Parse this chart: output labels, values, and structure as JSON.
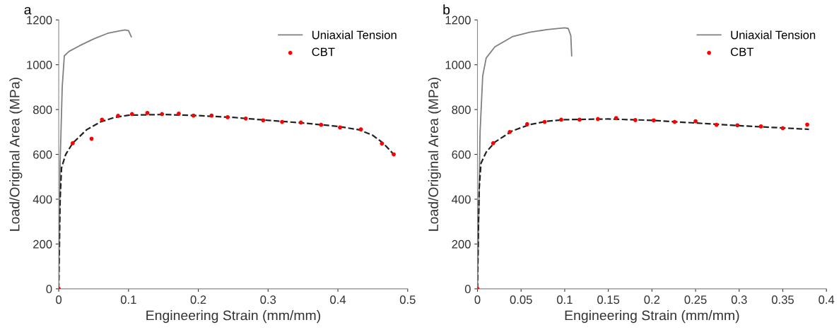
{
  "chart_data": [
    {
      "type": "line",
      "title": "a",
      "xlabel": "Engineering Strain (mm/mm)",
      "ylabel": "Load/Original Area (MPa)",
      "xlim": [
        0,
        0.5
      ],
      "ylim": [
        0,
        1200
      ],
      "xticks": [
        0,
        0.1,
        0.2,
        0.3,
        0.4,
        0.5
      ],
      "yticks": [
        0,
        200,
        400,
        600,
        800,
        1000,
        1200
      ],
      "grid": false,
      "legend": "top right",
      "series": [
        {
          "name": "Uniaxial Tension",
          "color": "#808080",
          "line_style": "solid",
          "x": [
            0,
            0.002,
            0.005,
            0.008,
            0.015,
            0.03,
            0.05,
            0.07,
            0.085,
            0.095,
            0.1,
            0.104
          ],
          "values": [
            0,
            560,
            900,
            1040,
            1060,
            1085,
            1115,
            1140,
            1150,
            1155,
            1152,
            1125
          ]
        },
        {
          "name": "CBT",
          "type": "scatter",
          "color": "#ff0000",
          "marker": "circle",
          "x": [
            0,
            0.02,
            0.047,
            0.062,
            0.085,
            0.105,
            0.127,
            0.148,
            0.172,
            0.193,
            0.219,
            0.242,
            0.268,
            0.293,
            0.32,
            0.347,
            0.376,
            0.403,
            0.433,
            0.463,
            0.48
          ],
          "values": [
            0,
            650,
            670,
            755,
            772,
            780,
            785,
            780,
            782,
            773,
            773,
            766,
            760,
            752,
            745,
            742,
            732,
            720,
            712,
            648,
            600
          ]
        },
        {
          "color": "#222222",
          "line_style": "dashed",
          "x": [
            0,
            0.001,
            0.002,
            0.004,
            0.01,
            0.02,
            0.04,
            0.06,
            0.08,
            0.1,
            0.15,
            0.2,
            0.25,
            0.3,
            0.35,
            0.4,
            0.43,
            0.45,
            0.465,
            0.48
          ],
          "values": [
            0,
            200,
            400,
            540,
            600,
            650,
            710,
            745,
            765,
            775,
            778,
            773,
            765,
            752,
            740,
            725,
            710,
            685,
            650,
            600
          ]
        }
      ]
    },
    {
      "type": "line",
      "title": "b",
      "xlabel": "Engineering Strain (mm/mm)",
      "ylabel": "Load/Original Area (MPa)",
      "xlim": [
        0,
        0.4
      ],
      "ylim": [
        0,
        1200
      ],
      "xticks": [
        0,
        0.05,
        0.1,
        0.15,
        0.2,
        0.25,
        0.3,
        0.35,
        0.4
      ],
      "yticks": [
        0,
        200,
        400,
        600,
        800,
        1000,
        1200
      ],
      "grid": false,
      "legend": "top right",
      "series": [
        {
          "name": "Uniaxial Tension",
          "color": "#808080",
          "line_style": "solid",
          "x": [
            0,
            0.003,
            0.006,
            0.01,
            0.02,
            0.04,
            0.06,
            0.08,
            0.1,
            0.104,
            0.107,
            0.108
          ],
          "values": [
            0,
            700,
            950,
            1030,
            1080,
            1125,
            1145,
            1157,
            1165,
            1162,
            1130,
            1040
          ]
        },
        {
          "name": "CBT",
          "type": "scatter",
          "color": "#ff0000",
          "marker": "circle",
          "x": [
            0,
            0.018,
            0.037,
            0.057,
            0.077,
            0.096,
            0.117,
            0.138,
            0.159,
            0.181,
            0.202,
            0.226,
            0.25,
            0.274,
            0.298,
            0.325,
            0.35,
            0.378
          ],
          "values": [
            0,
            650,
            700,
            735,
            745,
            755,
            755,
            758,
            762,
            753,
            752,
            745,
            748,
            732,
            730,
            725,
            717,
            733
          ]
        },
        {
          "color": "#222222",
          "line_style": "dashed",
          "x": [
            0,
            0.001,
            0.002,
            0.004,
            0.01,
            0.02,
            0.04,
            0.06,
            0.08,
            0.1,
            0.15,
            0.2,
            0.25,
            0.3,
            0.35,
            0.38
          ],
          "values": [
            0,
            250,
            450,
            560,
            610,
            655,
            705,
            733,
            748,
            755,
            758,
            752,
            740,
            728,
            718,
            712
          ]
        }
      ]
    }
  ]
}
